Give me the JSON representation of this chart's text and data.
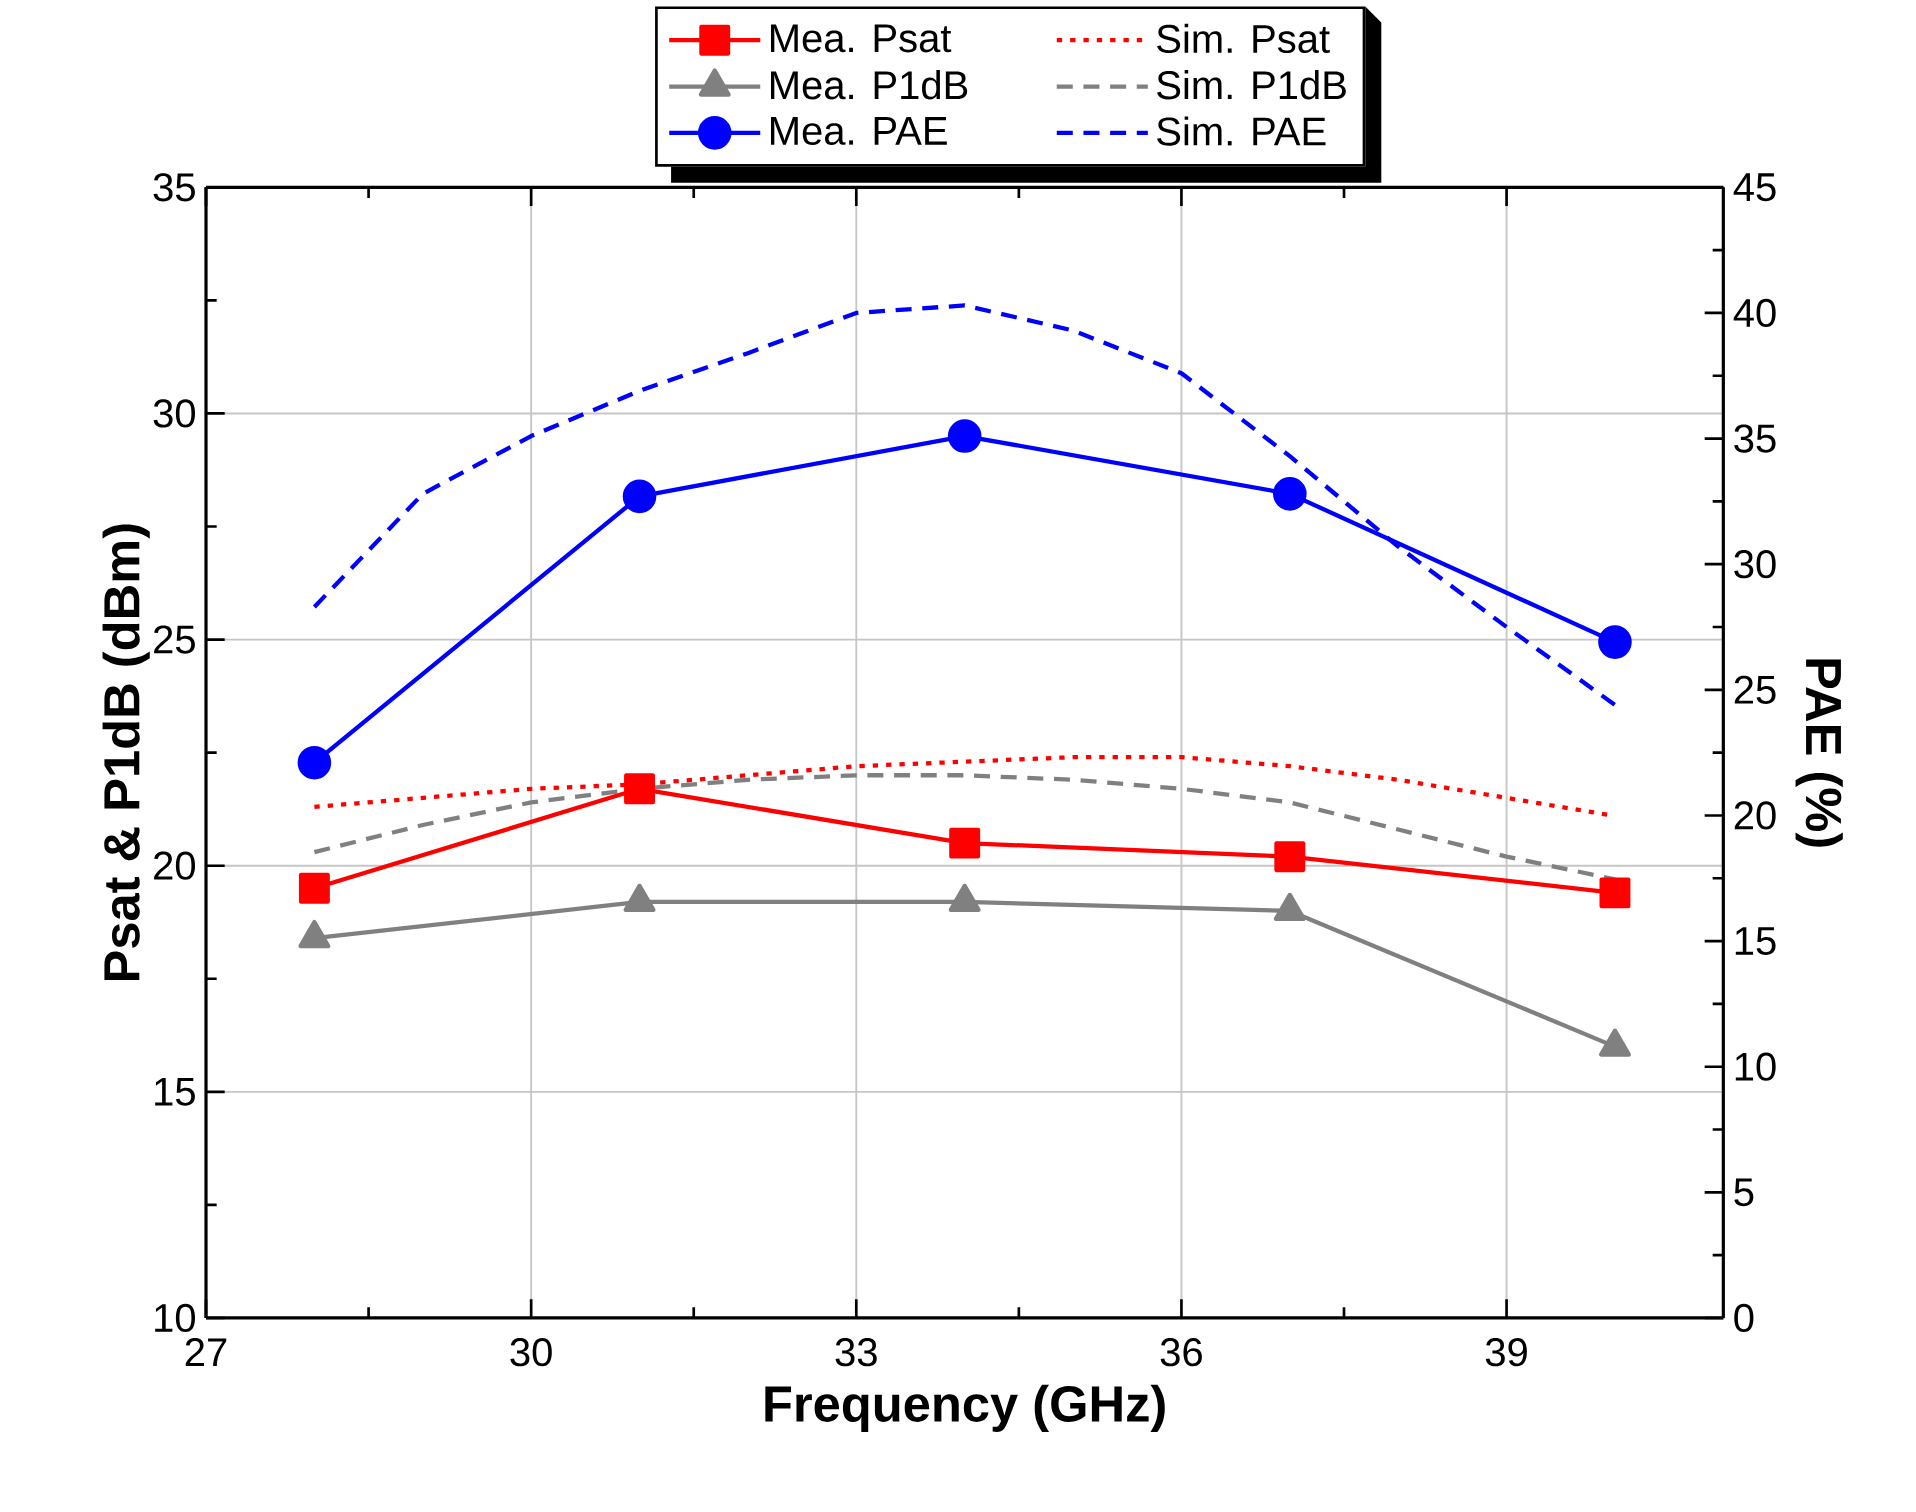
{
  "chart_data": {
    "type": "line",
    "xlabel": "Frequency (GHz)",
    "ylabel": "Psat & P1dB (dBm)",
    "y2label": "PAE  (%)",
    "xlim": [
      27,
      41
    ],
    "xticks": [
      27,
      30,
      33,
      36,
      39
    ],
    "ylim": [
      10,
      35
    ],
    "yticks": [
      10,
      15,
      20,
      25,
      30,
      35
    ],
    "y2lim": [
      0,
      45
    ],
    "y2ticks": [
      0,
      5,
      10,
      15,
      20,
      25,
      30,
      35,
      40,
      45
    ],
    "grid": true,
    "legend": "top",
    "series": [
      {
        "name": "Mea. Psat",
        "color": "#ff0000",
        "marker": "square",
        "line_style": "solid",
        "x": [
          28,
          31,
          34,
          37,
          40
        ],
        "values": [
          19.5,
          21.7,
          20.5,
          20.2,
          19.4
        ]
      },
      {
        "name": "Sim. Psat",
        "color": "#ff0000",
        "marker": "none",
        "line_style": "dotted",
        "x": [
          28,
          29,
          30,
          31,
          32,
          33,
          34,
          35,
          36,
          37,
          38,
          39,
          40
        ],
        "values": [
          21.3,
          21.5,
          21.7,
          21.8,
          22.0,
          22.2,
          22.3,
          22.4,
          22.4,
          22.2,
          21.9,
          21.5,
          21.1
        ]
      },
      {
        "name": "Mea. P1dB",
        "color": "#808080",
        "marker": "triangle",
        "line_style": "solid",
        "x": [
          28,
          31,
          34,
          37,
          40
        ],
        "values": [
          18.4,
          19.2,
          19.2,
          19.0,
          16.0
        ]
      },
      {
        "name": "Sim. P1dB",
        "color": "#808080",
        "marker": "none",
        "line_style": "dashed",
        "x": [
          28,
          29,
          30,
          31,
          32,
          33,
          34,
          35,
          36,
          37,
          38,
          39,
          40
        ],
        "values": [
          20.3,
          20.9,
          21.4,
          21.7,
          21.9,
          22.0,
          22.0,
          21.9,
          21.7,
          21.4,
          20.8,
          20.2,
          19.7
        ]
      },
      {
        "name": "Mea. PAE",
        "color": "#0000ff",
        "marker": "circle",
        "line_style": "solid",
        "axis": "y2",
        "x": [
          28,
          31,
          34,
          37,
          40
        ],
        "values": [
          22.1,
          32.7,
          35.1,
          32.8,
          26.9
        ]
      },
      {
        "name": "Sim. PAE",
        "color": "#0000ff",
        "marker": "none",
        "line_style": "dashed",
        "axis": "y2",
        "x": [
          28,
          29,
          30,
          31,
          32,
          33,
          34,
          35,
          36,
          37,
          38,
          39,
          40
        ],
        "values": [
          28.3,
          32.8,
          35.1,
          36.9,
          38.4,
          40.0,
          40.3,
          39.3,
          37.6,
          34.3,
          30.7,
          27.5,
          24.4
        ]
      }
    ]
  }
}
